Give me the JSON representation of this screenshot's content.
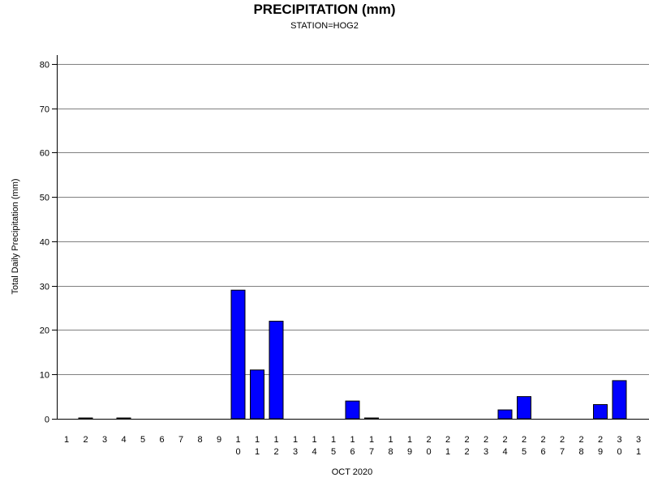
{
  "chart_data": {
    "type": "bar",
    "title": "PRECIPITATION (mm)",
    "subtitle": "STATION=HOG2",
    "xlabel": "OCT 2020",
    "ylabel": "Total Daily Precipitation (mm)",
    "ylim": [
      0,
      82
    ],
    "yticks": [
      0,
      10,
      20,
      30,
      40,
      50,
      60,
      70,
      80
    ],
    "grid": true,
    "categories": [
      "1",
      "2",
      "3",
      "4",
      "5",
      "6",
      "7",
      "8",
      "9",
      "10",
      "11",
      "12",
      "13",
      "14",
      "15",
      "16",
      "17",
      "18",
      "19",
      "20",
      "21",
      "22",
      "23",
      "24",
      "25",
      "26",
      "27",
      "28",
      "29",
      "30",
      "31"
    ],
    "values": [
      null,
      0.1,
      null,
      0.1,
      null,
      null,
      null,
      null,
      null,
      29,
      11,
      22,
      null,
      null,
      null,
      4,
      0.1,
      null,
      null,
      null,
      null,
      null,
      null,
      2,
      5,
      null,
      null,
      null,
      3.2,
      8.6,
      null
    ],
    "colors": {
      "bar_fill": "#0000ff",
      "bar_stroke": "#000000",
      "grid": "#808080",
      "axis": "#000000"
    }
  }
}
